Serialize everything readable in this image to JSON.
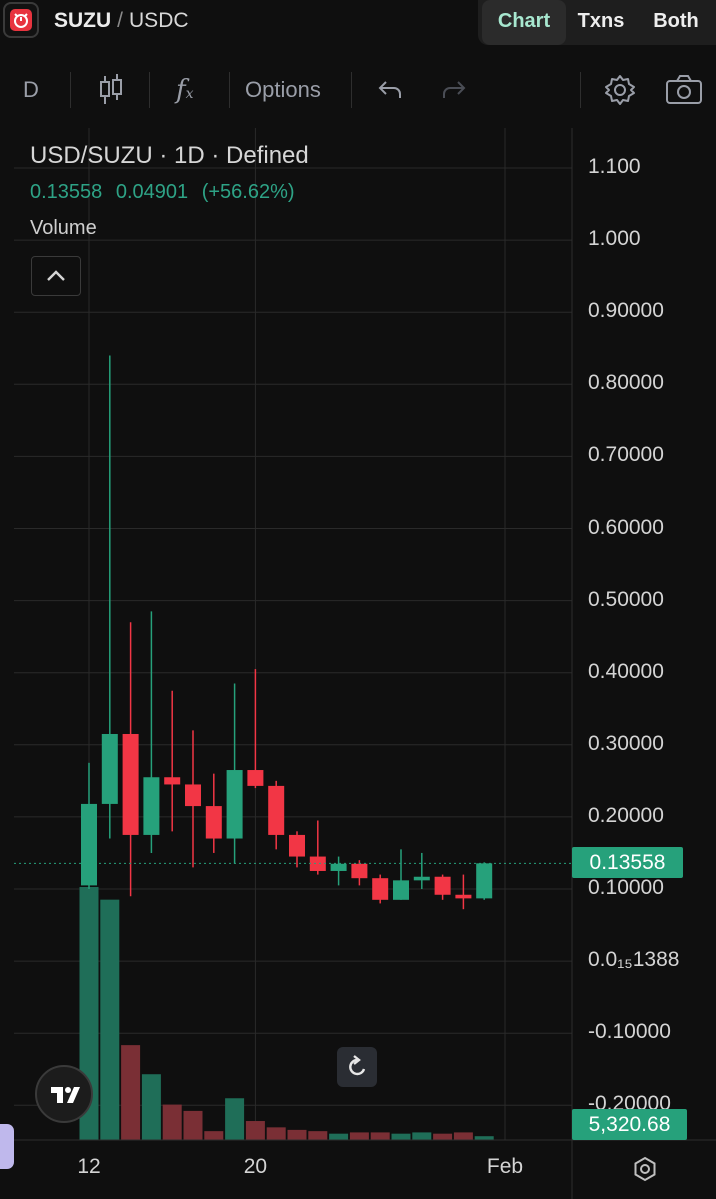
{
  "header": {
    "base": "SUZU",
    "separator": "/",
    "quote": "USDC",
    "tabs": [
      {
        "label": "Chart",
        "active": true
      },
      {
        "label": "Txns",
        "active": false
      },
      {
        "label": "Both",
        "active": false
      }
    ]
  },
  "toolbar": {
    "interval": "D",
    "options_label": "Options",
    "icons": [
      "candles-icon",
      "indicators-icon",
      "undo-icon",
      "redo-icon",
      "settings-icon",
      "camera-icon"
    ]
  },
  "legend": {
    "title": "USD/SUZU · 1D · Defined",
    "last": "0.13558",
    "change": "0.04901",
    "change_pct": "(+56.62%)",
    "volume_label": "Volume"
  },
  "colors": {
    "up": "#26a17b",
    "down": "#f23645",
    "bg": "#0f0f0f",
    "grid": "#2a2a2a"
  },
  "chart_data": {
    "type": "candlestick",
    "title": "USD/SUZU · 1D · Defined",
    "y_tick_labels": [
      "1.100",
      "1.000",
      "0.90000",
      "0.80000",
      "0.70000",
      "0.60000",
      "0.50000",
      "0.40000",
      "0.30000",
      "0.20000",
      "0.10000",
      "0.0₁₅1388",
      "-0.10000",
      "-0.20000"
    ],
    "y_ticks": [
      1.1,
      1.0,
      0.9,
      0.8,
      0.7,
      0.6,
      0.5,
      0.4,
      0.3,
      0.2,
      0.1,
      0.0,
      -0.1,
      -0.2
    ],
    "ylim": [
      -0.25,
      1.13
    ],
    "x_tick_labels": [
      {
        "label": "12",
        "day": 0
      },
      {
        "label": "20",
        "day": 8
      },
      {
        "label": "Feb",
        "day": 20
      }
    ],
    "last_price_label": "0.13558",
    "last_price": 0.13558,
    "volume_label_value": "5,320.68",
    "candles": [
      {
        "day": 0,
        "o": 0.105,
        "h": 0.275,
        "l": 0.1,
        "c": 0.218
      },
      {
        "day": 1,
        "o": 0.218,
        "h": 0.84,
        "l": 0.17,
        "c": 0.315
      },
      {
        "day": 2,
        "o": 0.315,
        "h": 0.47,
        "l": 0.09,
        "c": 0.175
      },
      {
        "day": 3,
        "o": 0.175,
        "h": 0.485,
        "l": 0.15,
        "c": 0.255
      },
      {
        "day": 4,
        "o": 0.255,
        "h": 0.375,
        "l": 0.18,
        "c": 0.245
      },
      {
        "day": 5,
        "o": 0.245,
        "h": 0.32,
        "l": 0.13,
        "c": 0.215
      },
      {
        "day": 6,
        "o": 0.215,
        "h": 0.26,
        "l": 0.15,
        "c": 0.17
      },
      {
        "day": 7,
        "o": 0.17,
        "h": 0.385,
        "l": 0.135,
        "c": 0.265
      },
      {
        "day": 8,
        "o": 0.265,
        "h": 0.405,
        "l": 0.24,
        "c": 0.243
      },
      {
        "day": 9,
        "o": 0.243,
        "h": 0.25,
        "l": 0.155,
        "c": 0.175
      },
      {
        "day": 10,
        "o": 0.175,
        "h": 0.18,
        "l": 0.13,
        "c": 0.145
      },
      {
        "day": 11,
        "o": 0.145,
        "h": 0.195,
        "l": 0.12,
        "c": 0.125
      },
      {
        "day": 12,
        "o": 0.125,
        "h": 0.145,
        "l": 0.105,
        "c": 0.135
      },
      {
        "day": 13,
        "o": 0.135,
        "h": 0.14,
        "l": 0.105,
        "c": 0.115
      },
      {
        "day": 14,
        "o": 0.115,
        "h": 0.12,
        "l": 0.08,
        "c": 0.085
      },
      {
        "day": 15,
        "o": 0.085,
        "h": 0.155,
        "l": 0.085,
        "c": 0.112
      },
      {
        "day": 16,
        "o": 0.112,
        "h": 0.15,
        "l": 0.1,
        "c": 0.117
      },
      {
        "day": 17,
        "o": 0.117,
        "h": 0.12,
        "l": 0.085,
        "c": 0.092
      },
      {
        "day": 18,
        "o": 0.092,
        "h": 0.12,
        "l": 0.072,
        "c": 0.087
      },
      {
        "day": 19,
        "o": 0.087,
        "h": 0.137,
        "l": 0.085,
        "c": 0.13558
      }
    ],
    "volumes": [
      {
        "day": 0,
        "v": 1.0,
        "dir": "up"
      },
      {
        "day": 1,
        "v": 0.95,
        "dir": "up"
      },
      {
        "day": 2,
        "v": 0.375,
        "dir": "down"
      },
      {
        "day": 3,
        "v": 0.26,
        "dir": "up"
      },
      {
        "day": 4,
        "v": 0.14,
        "dir": "down"
      },
      {
        "day": 5,
        "v": 0.115,
        "dir": "down"
      },
      {
        "day": 6,
        "v": 0.035,
        "dir": "down"
      },
      {
        "day": 7,
        "v": 0.165,
        "dir": "up"
      },
      {
        "day": 8,
        "v": 0.075,
        "dir": "down"
      },
      {
        "day": 9,
        "v": 0.05,
        "dir": "down"
      },
      {
        "day": 10,
        "v": 0.04,
        "dir": "down"
      },
      {
        "day": 11,
        "v": 0.035,
        "dir": "down"
      },
      {
        "day": 12,
        "v": 0.025,
        "dir": "up"
      },
      {
        "day": 13,
        "v": 0.03,
        "dir": "down"
      },
      {
        "day": 14,
        "v": 0.03,
        "dir": "down"
      },
      {
        "day": 15,
        "v": 0.025,
        "dir": "up"
      },
      {
        "day": 16,
        "v": 0.03,
        "dir": "up"
      },
      {
        "day": 17,
        "v": 0.025,
        "dir": "down"
      },
      {
        "day": 18,
        "v": 0.03,
        "dir": "down"
      },
      {
        "day": 19,
        "v": 0.015,
        "dir": "up"
      }
    ]
  }
}
